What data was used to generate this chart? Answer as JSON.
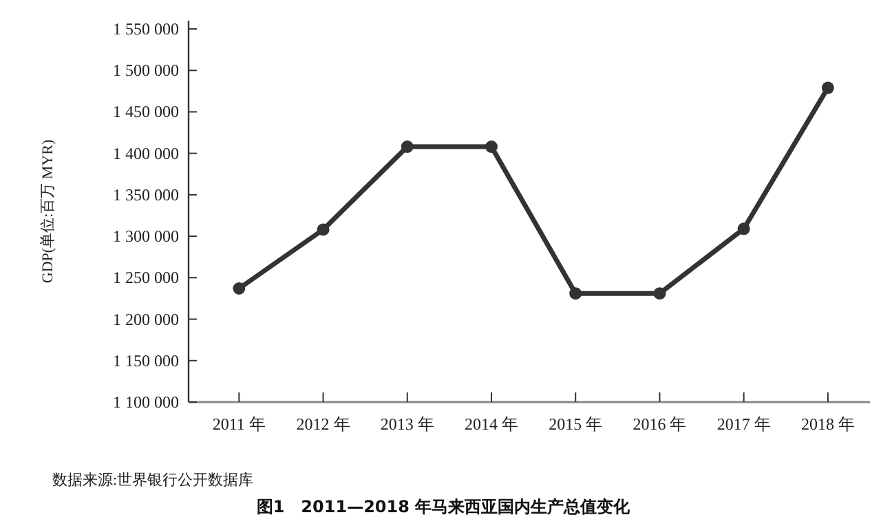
{
  "chart_data": {
    "type": "line",
    "title": "图1　2011—2018 年马来西亚国内生产总值变化",
    "ylabel": "GDP(单位:百万 MYR)",
    "categories": [
      "2011 年",
      "2012 年",
      "2013 年",
      "2014 年",
      "2015 年",
      "2016 年",
      "2017 年",
      "2018 年"
    ],
    "series": [
      {
        "color": "#333333",
        "values": [
          1237000,
          1308000,
          1408000,
          1408000,
          1231000,
          1231000,
          1309000,
          1479000
        ]
      }
    ],
    "ylim": [
      1100000,
      1560000
    ],
    "yticks": [
      {
        "value": 1100000,
        "label": "1 100 000"
      },
      {
        "value": 1150000,
        "label": "1 150 000"
      },
      {
        "value": 1200000,
        "label": "1 200 000"
      },
      {
        "value": 1250000,
        "label": "1 250 000"
      },
      {
        "value": 1300000,
        "label": "1 300 000"
      },
      {
        "value": 1350000,
        "label": "1 350 000"
      },
      {
        "value": 1400000,
        "label": "1 400 000"
      },
      {
        "value": 1450000,
        "label": "1 450 000"
      },
      {
        "value": 1500000,
        "label": "1 500 000"
      },
      {
        "value": 1550000,
        "label": "1 550 000"
      }
    ],
    "marker": "circle",
    "line_style": "solid",
    "grid": false,
    "annotations": [
      "数据来源:世界银行公开数据库"
    ]
  }
}
